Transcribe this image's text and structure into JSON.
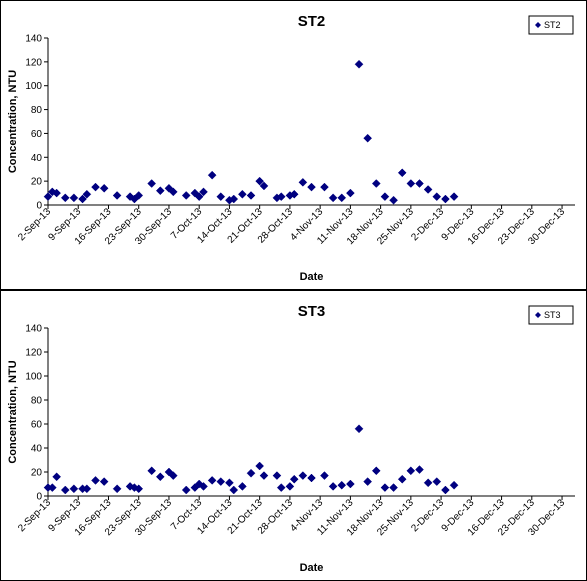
{
  "chart_data": [
    {
      "type": "scatter",
      "title": "ST2",
      "xlabel": "Date",
      "ylabel": "Concentration, NTU",
      "ylim": [
        0,
        140
      ],
      "yticks": [
        0,
        20,
        40,
        60,
        80,
        100,
        120,
        140
      ],
      "xlim": [
        "2-Sep-13",
        "2-Jan-14"
      ],
      "xticks": [
        "2-Sep-13",
        "9-Sep-13",
        "16-Sep-13",
        "23-Sep-13",
        "30-Sep-13",
        "7-Oct-13",
        "14-Oct-13",
        "21-Oct-13",
        "28-Oct-13",
        "4-Nov-13",
        "11-Nov-13",
        "18-Nov-13",
        "25-Nov-13",
        "2-Dec-13",
        "9-Dec-13",
        "16-Dec-13",
        "23-Dec-13",
        "30-Dec-13"
      ],
      "grid": false,
      "legend_position": "top-right",
      "marker_color": "#000080",
      "series": [
        {
          "name": "ST2",
          "points": [
            [
              "2-Sep-13",
              7
            ],
            [
              "3-Sep-13",
              11
            ],
            [
              "4-Sep-13",
              10
            ],
            [
              "6-Sep-13",
              6
            ],
            [
              "8-Sep-13",
              6
            ],
            [
              "10-Sep-13",
              5
            ],
            [
              "11-Sep-13",
              9
            ],
            [
              "13-Sep-13",
              15
            ],
            [
              "15-Sep-13",
              14
            ],
            [
              "18-Sep-13",
              8
            ],
            [
              "21-Sep-13",
              7
            ],
            [
              "22-Sep-13",
              5
            ],
            [
              "23-Sep-13",
              8
            ],
            [
              "26-Sep-13",
              18
            ],
            [
              "28-Sep-13",
              12
            ],
            [
              "30-Sep-13",
              14
            ],
            [
              "1-Oct-13",
              11
            ],
            [
              "4-Oct-13",
              8
            ],
            [
              "6-Oct-13",
              10
            ],
            [
              "7-Oct-13",
              7
            ],
            [
              "8-Oct-13",
              11
            ],
            [
              "10-Oct-13",
              25
            ],
            [
              "12-Oct-13",
              7
            ],
            [
              "14-Oct-13",
              4
            ],
            [
              "15-Oct-13",
              5
            ],
            [
              "17-Oct-13",
              9
            ],
            [
              "19-Oct-13",
              8
            ],
            [
              "21-Oct-13",
              20
            ],
            [
              "22-Oct-13",
              16
            ],
            [
              "25-Oct-13",
              6
            ],
            [
              "26-Oct-13",
              7
            ],
            [
              "28-Oct-13",
              8
            ],
            [
              "29-Oct-13",
              9
            ],
            [
              "31-Oct-13",
              19
            ],
            [
              "2-Nov-13",
              15
            ],
            [
              "5-Nov-13",
              15
            ],
            [
              "7-Nov-13",
              6
            ],
            [
              "9-Nov-13",
              6
            ],
            [
              "11-Nov-13",
              10
            ],
            [
              "13-Nov-13",
              118
            ],
            [
              "15-Nov-13",
              56
            ],
            [
              "17-Nov-13",
              18
            ],
            [
              "19-Nov-13",
              7
            ],
            [
              "21-Nov-13",
              4
            ],
            [
              "23-Nov-13",
              27
            ],
            [
              "25-Nov-13",
              18
            ],
            [
              "27-Nov-13",
              18
            ],
            [
              "29-Nov-13",
              13
            ],
            [
              "1-Dec-13",
              7
            ],
            [
              "3-Dec-13",
              5
            ],
            [
              "5-Dec-13",
              7
            ]
          ]
        }
      ]
    },
    {
      "type": "scatter",
      "title": "ST3",
      "xlabel": "Date",
      "ylabel": "Concentration, NTU",
      "ylim": [
        0,
        140
      ],
      "yticks": [
        0,
        20,
        40,
        60,
        80,
        100,
        120,
        140
      ],
      "xlim": [
        "2-Sep-13",
        "2-Jan-14"
      ],
      "xticks": [
        "2-Sep-13",
        "9-Sep-13",
        "16-Sep-13",
        "23-Sep-13",
        "30-Sep-13",
        "7-Oct-13",
        "14-Oct-13",
        "21-Oct-13",
        "28-Oct-13",
        "4-Nov-13",
        "11-Nov-13",
        "18-Nov-13",
        "25-Nov-13",
        "2-Dec-13",
        "9-Dec-13",
        "16-Dec-13",
        "23-Dec-13",
        "30-Dec-13"
      ],
      "grid": false,
      "legend_position": "top-right",
      "marker_color": "#000080",
      "series": [
        {
          "name": "ST3",
          "points": [
            [
              "2-Sep-13",
              7
            ],
            [
              "3-Sep-13",
              7
            ],
            [
              "4-Sep-13",
              16
            ],
            [
              "6-Sep-13",
              5
            ],
            [
              "8-Sep-13",
              6
            ],
            [
              "10-Sep-13",
              6
            ],
            [
              "11-Sep-13",
              6
            ],
            [
              "13-Sep-13",
              13
            ],
            [
              "15-Sep-13",
              12
            ],
            [
              "18-Sep-13",
              6
            ],
            [
              "21-Sep-13",
              8
            ],
            [
              "22-Sep-13",
              7
            ],
            [
              "23-Sep-13",
              6
            ],
            [
              "26-Sep-13",
              21
            ],
            [
              "28-Sep-13",
              16
            ],
            [
              "30-Sep-13",
              20
            ],
            [
              "1-Oct-13",
              17
            ],
            [
              "4-Oct-13",
              5
            ],
            [
              "6-Oct-13",
              7
            ],
            [
              "7-Oct-13",
              10
            ],
            [
              "8-Oct-13",
              8
            ],
            [
              "10-Oct-13",
              13
            ],
            [
              "12-Oct-13",
              12
            ],
            [
              "14-Oct-13",
              11
            ],
            [
              "15-Oct-13",
              5
            ],
            [
              "17-Oct-13",
              8
            ],
            [
              "19-Oct-13",
              19
            ],
            [
              "21-Oct-13",
              25
            ],
            [
              "22-Oct-13",
              17
            ],
            [
              "25-Oct-13",
              17
            ],
            [
              "26-Oct-13",
              7
            ],
            [
              "28-Oct-13",
              8
            ],
            [
              "29-Oct-13",
              14
            ],
            [
              "31-Oct-13",
              17
            ],
            [
              "2-Nov-13",
              15
            ],
            [
              "5-Nov-13",
              17
            ],
            [
              "7-Nov-13",
              8
            ],
            [
              "9-Nov-13",
              9
            ],
            [
              "11-Nov-13",
              10
            ],
            [
              "13-Nov-13",
              56
            ],
            [
              "15-Nov-13",
              12
            ],
            [
              "17-Nov-13",
              21
            ],
            [
              "19-Nov-13",
              7
            ],
            [
              "21-Nov-13",
              7
            ],
            [
              "23-Nov-13",
              14
            ],
            [
              "25-Nov-13",
              21
            ],
            [
              "27-Nov-13",
              22
            ],
            [
              "29-Nov-13",
              11
            ],
            [
              "1-Dec-13",
              12
            ],
            [
              "3-Dec-13",
              5
            ],
            [
              "5-Dec-13",
              9
            ]
          ]
        }
      ]
    }
  ]
}
